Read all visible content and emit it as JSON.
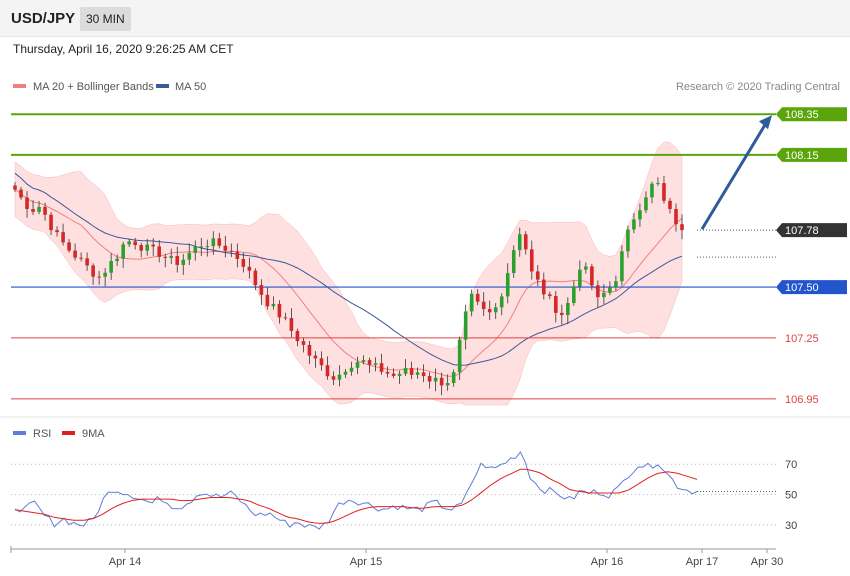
{
  "header": {
    "symbol": "USD/JPY",
    "timeframe": "30 MIN",
    "datetime": "Thursday, April 16, 2020 9:26:25 AM CET"
  },
  "legend": {
    "ma20": "MA 20 + Bollinger Bands",
    "ma50": "MA 50",
    "credit": "Research © 2020 Trading Central",
    "rsi": "RSI",
    "rsi_ma": "9MA"
  },
  "colors": {
    "up": "#2ca02c",
    "down": "#d62728",
    "band": "#ffd6d6",
    "ma20": "#f08080",
    "ma50": "#3a5a9a",
    "target": "#5aa50a",
    "support": "#2255cc",
    "level": "#e04040",
    "arrow": "#2f5b9a",
    "rsi": "#5b7fd6",
    "rsi_ma": "#e02020",
    "current": "#333333"
  },
  "chart_data": {
    "type": "candlestick",
    "price_range": [
      106.92,
      108.42
    ],
    "levels": [
      {
        "value": 108.35,
        "label": "108.35",
        "kind": "target"
      },
      {
        "value": 108.15,
        "label": "108.15",
        "kind": "target"
      },
      {
        "value": 107.78,
        "label": "107.78",
        "kind": "current"
      },
      {
        "value": 107.5,
        "label": "107.50",
        "kind": "support"
      },
      {
        "value": 107.25,
        "label": "107.25",
        "kind": "level"
      },
      {
        "value": 106.95,
        "label": "106.95",
        "kind": "level"
      }
    ],
    "close_path": [
      107.98,
      107.92,
      107.88,
      107.9,
      107.82,
      107.75,
      107.7,
      107.66,
      107.62,
      107.58,
      107.55,
      107.6,
      107.65,
      107.72,
      107.73,
      107.7,
      107.68,
      107.67,
      107.64,
      107.62,
      107.64,
      107.68,
      107.71,
      107.72,
      107.71,
      107.69,
      107.66,
      107.62,
      107.55,
      107.48,
      107.42,
      107.38,
      107.33,
      107.27,
      107.22,
      107.16,
      107.12,
      107.08,
      107.05,
      107.1,
      107.13,
      107.14,
      107.11,
      107.1,
      107.08,
      107.06,
      107.09,
      107.07,
      107.09,
      107.05,
      107.04,
      107.03,
      107.07,
      107.3,
      107.45,
      107.4,
      107.36,
      107.4,
      107.52,
      107.68,
      107.8,
      107.58,
      107.52,
      107.45,
      107.4,
      107.36,
      107.48,
      107.62,
      107.55,
      107.43,
      107.48,
      107.52,
      107.68,
      107.82,
      107.9,
      107.98,
      108.02,
      107.9,
      107.84,
      107.78
    ],
    "targets_arrow": {
      "from": 107.78,
      "to": 108.35
    },
    "rsi": {
      "levels": [
        {
          "value": 70,
          "label": "70"
        },
        {
          "value": 50,
          "label": "50"
        },
        {
          "value": 30,
          "label": "30"
        }
      ],
      "range": [
        20,
        82
      ],
      "rsi_path": [
        42,
        40,
        44,
        36,
        31,
        34,
        31,
        30,
        33,
        46,
        54,
        52,
        50,
        47,
        44,
        48,
        43,
        42,
        46,
        52,
        50,
        48,
        51,
        47,
        40,
        36,
        38,
        34,
        30,
        32,
        29,
        28,
        31,
        42,
        47,
        46,
        44,
        42,
        40,
        43,
        41,
        40,
        41,
        45,
        42,
        40,
        44,
        60,
        71,
        66,
        70,
        74,
        79,
        60,
        54,
        52,
        50,
        46,
        52,
        51,
        52,
        50,
        54,
        64,
        70,
        68,
        72,
        63,
        56,
        53,
        52
      ],
      "ma_path": [
        40,
        39,
        38,
        37,
        35,
        34,
        33,
        33,
        34,
        37,
        41,
        44,
        46,
        47,
        47,
        47,
        47,
        46,
        46,
        47,
        48,
        48,
        48,
        47,
        46,
        43,
        41,
        38,
        35,
        34,
        32,
        31,
        31,
        33,
        36,
        39,
        41,
        42,
        42,
        42,
        42,
        41,
        41,
        42,
        42,
        42,
        43,
        47,
        52,
        57,
        61,
        64,
        67,
        66,
        64,
        60,
        57,
        53,
        52,
        51,
        51,
        51,
        51,
        53,
        57,
        61,
        64,
        65,
        64,
        62,
        60
      ]
    },
    "x_ticks": [
      "Apr 14",
      "Apr 15",
      "Apr 16",
      "Apr 17",
      "Apr 30"
    ]
  }
}
